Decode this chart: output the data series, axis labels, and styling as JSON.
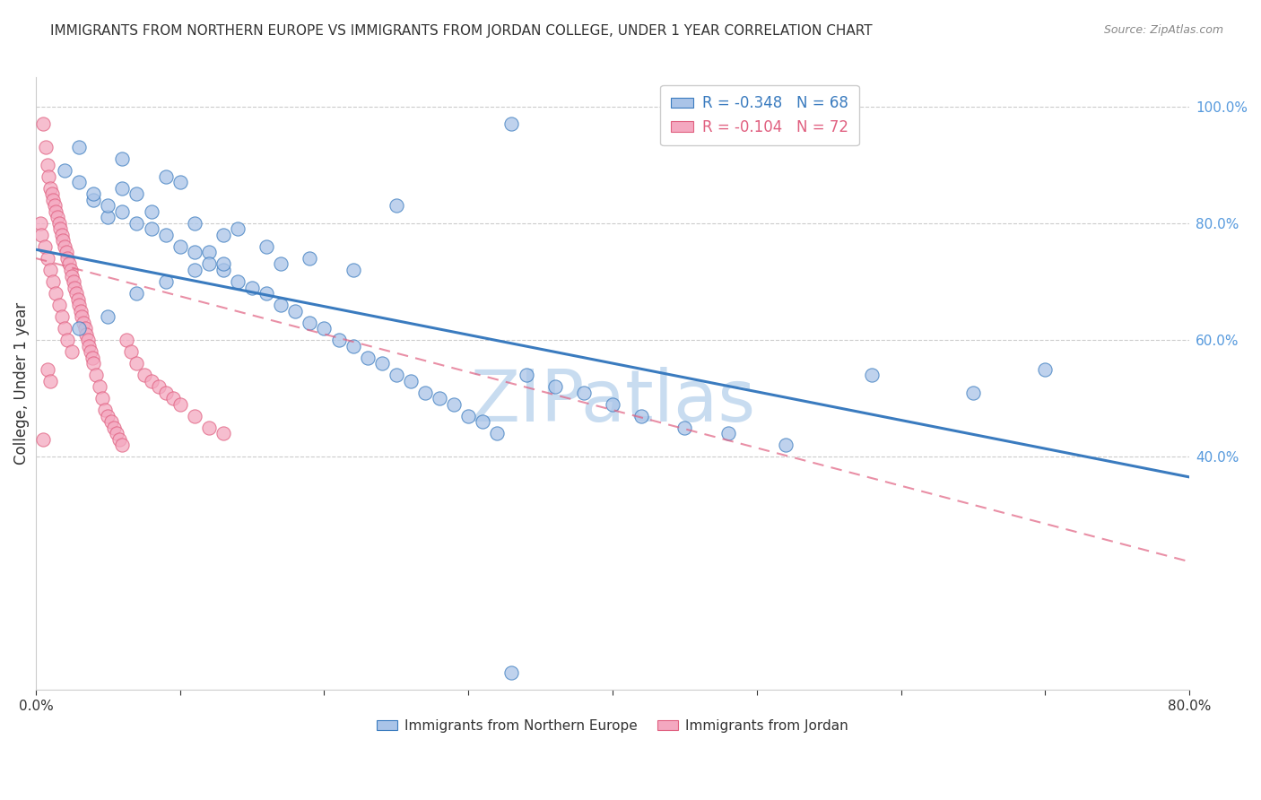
{
  "title": "IMMIGRANTS FROM NORTHERN EUROPE VS IMMIGRANTS FROM JORDAN COLLEGE, UNDER 1 YEAR CORRELATION CHART",
  "source": "Source: ZipAtlas.com",
  "ylabel": "College, Under 1 year",
  "right_yticks": [
    "100.0%",
    "80.0%",
    "60.0%",
    "40.0%"
  ],
  "right_ytick_vals": [
    1.0,
    0.8,
    0.6,
    0.4
  ],
  "blue_scatter_x": [
    0.33,
    0.25,
    0.02,
    0.06,
    0.14,
    0.03,
    0.06,
    0.09,
    0.1,
    0.07,
    0.04,
    0.08,
    0.05,
    0.11,
    0.13,
    0.16,
    0.19,
    0.22,
    0.17,
    0.12,
    0.03,
    0.04,
    0.05,
    0.06,
    0.07,
    0.08,
    0.09,
    0.1,
    0.11,
    0.12,
    0.13,
    0.14,
    0.15,
    0.16,
    0.17,
    0.18,
    0.19,
    0.2,
    0.21,
    0.22,
    0.23,
    0.24,
    0.25,
    0.26,
    0.27,
    0.28,
    0.29,
    0.3,
    0.31,
    0.32,
    0.34,
    0.36,
    0.38,
    0.4,
    0.42,
    0.45,
    0.48,
    0.52,
    0.58,
    0.65,
    0.7,
    0.03,
    0.05,
    0.07,
    0.09,
    0.11,
    0.13,
    0.33
  ],
  "blue_scatter_y": [
    0.97,
    0.83,
    0.89,
    0.86,
    0.79,
    0.93,
    0.91,
    0.88,
    0.87,
    0.85,
    0.84,
    0.82,
    0.81,
    0.8,
    0.78,
    0.76,
    0.74,
    0.72,
    0.73,
    0.75,
    0.87,
    0.85,
    0.83,
    0.82,
    0.8,
    0.79,
    0.78,
    0.76,
    0.75,
    0.73,
    0.72,
    0.7,
    0.69,
    0.68,
    0.66,
    0.65,
    0.63,
    0.62,
    0.6,
    0.59,
    0.57,
    0.56,
    0.54,
    0.53,
    0.51,
    0.5,
    0.49,
    0.47,
    0.46,
    0.44,
    0.54,
    0.52,
    0.51,
    0.49,
    0.47,
    0.45,
    0.44,
    0.42,
    0.54,
    0.51,
    0.55,
    0.62,
    0.64,
    0.68,
    0.7,
    0.72,
    0.73,
    0.03
  ],
  "pink_scatter_x": [
    0.005,
    0.007,
    0.008,
    0.009,
    0.01,
    0.011,
    0.012,
    0.013,
    0.014,
    0.015,
    0.016,
    0.017,
    0.018,
    0.019,
    0.02,
    0.021,
    0.022,
    0.023,
    0.024,
    0.025,
    0.026,
    0.027,
    0.028,
    0.029,
    0.03,
    0.031,
    0.032,
    0.033,
    0.034,
    0.035,
    0.036,
    0.037,
    0.038,
    0.039,
    0.04,
    0.042,
    0.044,
    0.046,
    0.048,
    0.05,
    0.052,
    0.054,
    0.056,
    0.058,
    0.06,
    0.063,
    0.066,
    0.07,
    0.075,
    0.08,
    0.085,
    0.09,
    0.095,
    0.1,
    0.11,
    0.12,
    0.13,
    0.003,
    0.004,
    0.006,
    0.008,
    0.01,
    0.012,
    0.014,
    0.016,
    0.018,
    0.02,
    0.022,
    0.025,
    0.008,
    0.01,
    0.005
  ],
  "pink_scatter_y": [
    0.97,
    0.93,
    0.9,
    0.88,
    0.86,
    0.85,
    0.84,
    0.83,
    0.82,
    0.81,
    0.8,
    0.79,
    0.78,
    0.77,
    0.76,
    0.75,
    0.74,
    0.73,
    0.72,
    0.71,
    0.7,
    0.69,
    0.68,
    0.67,
    0.66,
    0.65,
    0.64,
    0.63,
    0.62,
    0.61,
    0.6,
    0.59,
    0.58,
    0.57,
    0.56,
    0.54,
    0.52,
    0.5,
    0.48,
    0.47,
    0.46,
    0.45,
    0.44,
    0.43,
    0.42,
    0.6,
    0.58,
    0.56,
    0.54,
    0.53,
    0.52,
    0.51,
    0.5,
    0.49,
    0.47,
    0.45,
    0.44,
    0.8,
    0.78,
    0.76,
    0.74,
    0.72,
    0.7,
    0.68,
    0.66,
    0.64,
    0.62,
    0.6,
    0.58,
    0.55,
    0.53,
    0.43
  ],
  "blue_line_x": [
    0.0,
    0.8
  ],
  "blue_line_y": [
    0.755,
    0.365
  ],
  "pink_line_x": [
    0.0,
    0.8
  ],
  "pink_line_y": [
    0.74,
    0.22
  ],
  "blue_scatter_color": "#aac4e8",
  "pink_scatter_color": "#f4a8c0",
  "blue_line_color": "#3a7bbf",
  "pink_line_color": "#e06080",
  "watermark": "ZIPatlas",
  "watermark_color": "#c8dcf0",
  "background_color": "#ffffff",
  "grid_color": "#cccccc",
  "title_color": "#333333",
  "right_axis_color": "#5599dd",
  "xlim": [
    0.0,
    0.8
  ],
  "ylim": [
    0.0,
    1.05
  ],
  "legend_blue_label": "R = -0.348   N = 68",
  "legend_pink_label": "R = -0.104   N = 72",
  "bottom_legend_blue": "Immigrants from Northern Europe",
  "bottom_legend_pink": "Immigrants from Jordan"
}
